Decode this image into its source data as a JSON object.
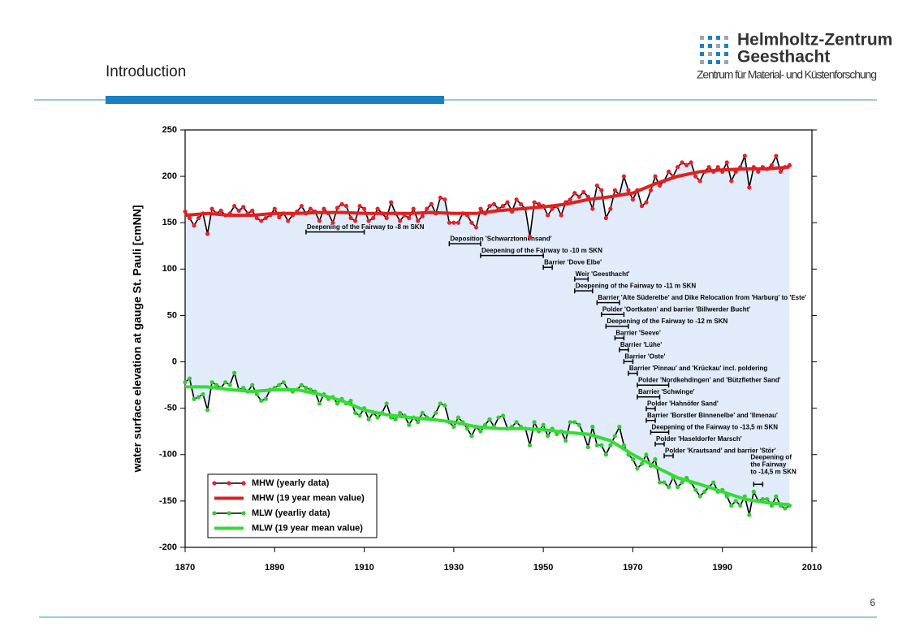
{
  "header": {
    "title": "Introduction",
    "logo": [
      "Helmholtz-Zentrum",
      "Geesthacht",
      "Zentrum für Material- und Küstenforschung"
    ],
    "page_number": "6"
  },
  "chart_data": {
    "type": "line",
    "y_label": "water surface elevation at gauge St. Pauli [cmNN]",
    "xlim": [
      1870,
      2010
    ],
    "xticks": [
      1870,
      1890,
      1910,
      1930,
      1950,
      1970,
      1990,
      2010
    ],
    "ylim": [
      -200,
      250
    ],
    "yticks": [
      -200,
      -150,
      -100,
      -50,
      0,
      50,
      100,
      150,
      200,
      250
    ],
    "legend": "lower left",
    "x": [
      1870,
      1871,
      1872,
      1873,
      1874,
      1875,
      1876,
      1877,
      1878,
      1879,
      1880,
      1881,
      1882,
      1883,
      1884,
      1885,
      1886,
      1887,
      1888,
      1889,
      1890,
      1891,
      1892,
      1893,
      1894,
      1895,
      1896,
      1897,
      1898,
      1899,
      1900,
      1901,
      1902,
      1903,
      1904,
      1905,
      1906,
      1907,
      1908,
      1909,
      1910,
      1911,
      1912,
      1913,
      1914,
      1915,
      1916,
      1917,
      1918,
      1919,
      1920,
      1921,
      1922,
      1923,
      1924,
      1925,
      1926,
      1927,
      1928,
      1929,
      1930,
      1931,
      1932,
      1933,
      1934,
      1935,
      1936,
      1937,
      1938,
      1939,
      1940,
      1941,
      1942,
      1943,
      1944,
      1945,
      1946,
      1947,
      1948,
      1949,
      1950,
      1951,
      1952,
      1953,
      1954,
      1955,
      1956,
      1957,
      1958,
      1959,
      1960,
      1961,
      1962,
      1963,
      1964,
      1965,
      1966,
      1967,
      1968,
      1969,
      1970,
      1971,
      1972,
      1973,
      1974,
      1975,
      1976,
      1977,
      1978,
      1979,
      1980,
      1981,
      1982,
      1983,
      1984,
      1985,
      1986,
      1987,
      1988,
      1989,
      1990,
      1991,
      1992,
      1993,
      1994,
      1995,
      1996,
      1997,
      1998,
      1999,
      2000,
      2001,
      2002,
      2003,
      2004,
      2005
    ],
    "series": [
      {
        "name": "MHW (yearly data)",
        "color": "#000000",
        "marker_color": "#e8202a",
        "values": [
          162,
          155,
          147,
          155,
          160,
          138,
          165,
          160,
          163,
          158,
          160,
          168,
          163,
          167,
          160,
          163,
          155,
          152,
          155,
          158,
          165,
          156,
          160,
          152,
          158,
          162,
          168,
          160,
          165,
          162,
          152,
          165,
          160,
          150,
          166,
          170,
          168,
          155,
          152,
          168,
          165,
          152,
          155,
          165,
          160,
          155,
          172,
          160,
          152,
          158,
          155,
          165,
          152,
          157,
          165,
          170,
          160,
          177,
          175,
          150,
          150,
          150,
          160,
          158,
          150,
          145,
          165,
          160,
          168,
          170,
          165,
          168,
          172,
          162,
          175,
          170,
          165,
          135,
          172,
          170,
          168,
          158,
          165,
          168,
          158,
          172,
          175,
          182,
          178,
          183,
          178,
          165,
          190,
          185,
          155,
          165,
          185,
          180,
          200,
          185,
          175,
          185,
          168,
          172,
          185,
          200,
          190,
          195,
          205,
          200,
          210,
          215,
          212,
          215,
          200,
          195,
          205,
          210,
          205,
          210,
          205,
          215,
          195,
          205,
          210,
          222,
          188,
          210,
          205,
          210,
          208,
          212,
          222,
          205,
          210,
          212
        ]
      },
      {
        "name": "MHW (19 year mean value)",
        "color": "#e02020",
        "x": [
          1870,
          1875,
          1880,
          1885,
          1890,
          1895,
          1900,
          1905,
          1910,
          1915,
          1920,
          1925,
          1930,
          1935,
          1940,
          1945,
          1950,
          1955,
          1960,
          1965,
          1970,
          1975,
          1980,
          1985,
          1990,
          1995,
          2000,
          2005
        ],
        "values": [
          158,
          160,
          158,
          158,
          160,
          160,
          161,
          161,
          160,
          160,
          160,
          161,
          160,
          160,
          163,
          165,
          167,
          170,
          175,
          178,
          182,
          192,
          200,
          205,
          207,
          208,
          208,
          210
        ]
      },
      {
        "name": "MLW (yearliy data)",
        "color": "#000000",
        "marker_color": "#33cc33",
        "values": [
          -22,
          -18,
          -40,
          -38,
          -35,
          -52,
          -22,
          -25,
          -28,
          -22,
          -25,
          -12,
          -30,
          -28,
          -32,
          -25,
          -35,
          -42,
          -40,
          -30,
          -28,
          -25,
          -22,
          -30,
          -32,
          -30,
          -25,
          -28,
          -30,
          -32,
          -45,
          -35,
          -40,
          -38,
          -45,
          -40,
          -45,
          -42,
          -55,
          -58,
          -50,
          -62,
          -55,
          -60,
          -55,
          -45,
          -60,
          -62,
          -55,
          -58,
          -68,
          -60,
          -65,
          -55,
          -60,
          -62,
          -55,
          -45,
          -47,
          -65,
          -70,
          -60,
          -65,
          -72,
          -80,
          -70,
          -75,
          -68,
          -62,
          -70,
          -60,
          -58,
          -72,
          -70,
          -65,
          -70,
          -72,
          -90,
          -65,
          -75,
          -68,
          -80,
          -72,
          -78,
          -75,
          -85,
          -65,
          -65,
          -68,
          -78,
          -92,
          -70,
          -90,
          -90,
          -100,
          -90,
          -80,
          -70,
          -90,
          -100,
          -105,
          -115,
          -110,
          -100,
          -112,
          -105,
          -130,
          -130,
          -135,
          -125,
          -135,
          -130,
          -125,
          -130,
          -138,
          -145,
          -140,
          -135,
          -130,
          -140,
          -138,
          -145,
          -155,
          -150,
          -155,
          -145,
          -165,
          -140,
          -150,
          -148,
          -148,
          -155,
          -145,
          -155,
          -158,
          -155
        ]
      },
      {
        "name": "MLW (19 year mean value)",
        "color": "#33dd33",
        "x": [
          1870,
          1875,
          1880,
          1885,
          1890,
          1895,
          1900,
          1905,
          1910,
          1915,
          1920,
          1925,
          1930,
          1935,
          1940,
          1945,
          1950,
          1955,
          1960,
          1965,
          1970,
          1975,
          1980,
          1985,
          1990,
          1995,
          2000,
          2005
        ],
        "values": [
          -27,
          -27,
          -30,
          -32,
          -30,
          -30,
          -35,
          -42,
          -52,
          -57,
          -60,
          -62,
          -65,
          -70,
          -72,
          -72,
          -73,
          -76,
          -78,
          -85,
          -100,
          -113,
          -125,
          -132,
          -140,
          -148,
          -152,
          -154
        ]
      }
    ],
    "annotations": [
      {
        "text": "Deepening of the Fairway to -8 m SKN",
        "start": 1897,
        "end": 1910
      },
      {
        "text": "Deposition 'Schwarztonnensand'",
        "start": 1929,
        "end": 1936
      },
      {
        "text": "Deepening of the Fairway to -10 m SKN",
        "start": 1936,
        "end": 1950
      },
      {
        "text": "Barrier 'Dove Elbe'",
        "start": 1950,
        "end": 1952
      },
      {
        "text": "Weir 'Geesthacht'",
        "start": 1957,
        "end": 1960
      },
      {
        "text": "Deepening of the Fairway to -11 m SKN",
        "start": 1957,
        "end": 1961
      },
      {
        "text": "Barrier 'Alte Süderelbe' and Dike Relocation from 'Harburg' to 'Este'",
        "start": 1962,
        "end": 1967
      },
      {
        "text": "Polder 'Oortkaten' and barrier 'Billwerder Bucht'",
        "start": 1963,
        "end": 1968
      },
      {
        "text": "Deepening of the Fairway to -12 m SKN",
        "start": 1964,
        "end": 1969
      },
      {
        "text": "Barrier 'Seeve'",
        "start": 1966,
        "end": 1968
      },
      {
        "text": "Barrier 'Lühe'",
        "start": 1967,
        "end": 1969
      },
      {
        "text": "Barrier 'Oste'",
        "start": 1968,
        "end": 1970
      },
      {
        "text": "Barrier 'Pinnau' and 'Krückau' incl. poldering",
        "start": 1969,
        "end": 1971
      },
      {
        "text": "Polder 'Nordkehdingen' and 'Bützflether Sand'",
        "start": 1971,
        "end": 1978
      },
      {
        "text": "Barrier 'Schwinge'",
        "start": 1971,
        "end": 1976
      },
      {
        "text": "Polder 'Hahnöfer Sand'",
        "start": 1973,
        "end": 1975
      },
      {
        "text": "Barrier 'Borstler Binnenelbe' and 'Ilmenau'",
        "start": 1973,
        "end": 1975
      },
      {
        "text": "Deepening of the Fairway to -13,5 m SKN",
        "start": 1974,
        "end": 1978
      },
      {
        "text": "Polder 'Haseldorfer Marsch'",
        "start": 1975,
        "end": 1977
      },
      {
        "text": "Polder 'Krautsand' and barrier 'Stör'",
        "start": 1977,
        "end": 1979
      },
      {
        "lines": [
          "Deepening of",
          "the Fairway",
          "to -14,5 m SKN"
        ],
        "start": 1997,
        "end": 1999
      }
    ]
  }
}
